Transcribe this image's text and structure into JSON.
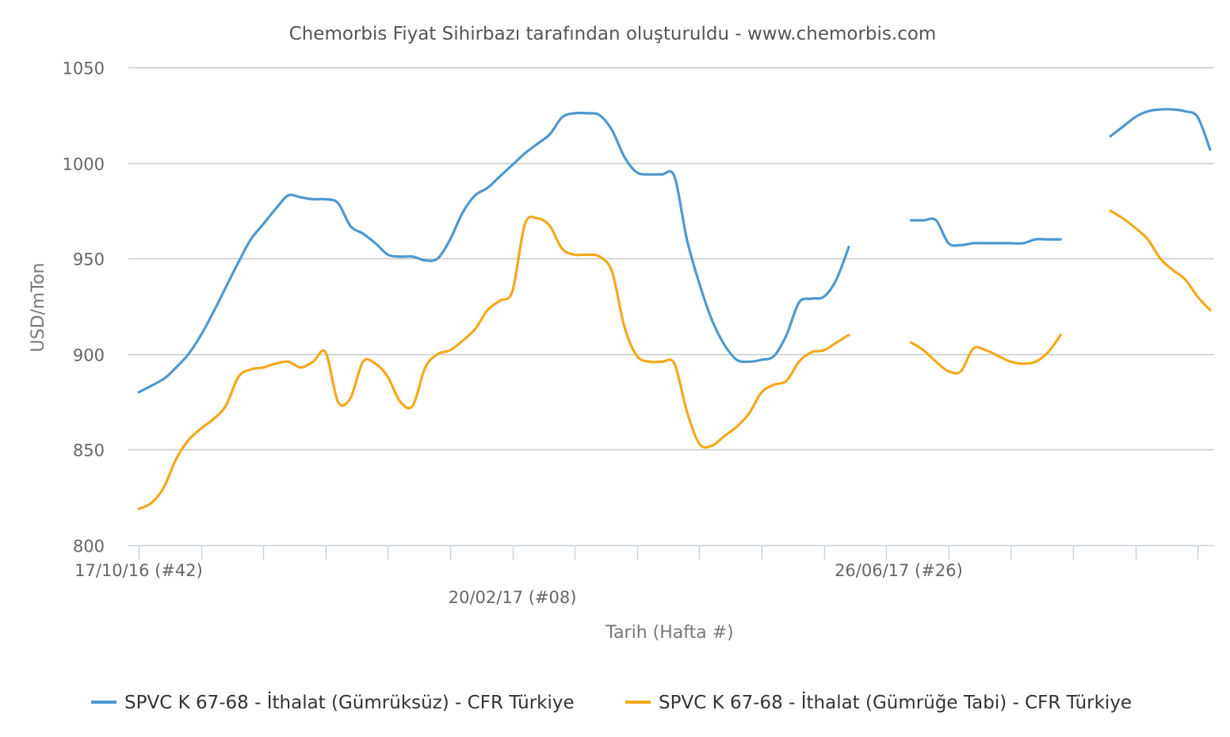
{
  "chart_data": {
    "type": "line",
    "title": "Chemorbis Fiyat Sihirbazı tarafından oluşturuldu - www.chemorbis.com",
    "xlabel": "Tarih (Hafta #)",
    "ylabel": "USD/mTon",
    "ylim": [
      800,
      1050
    ],
    "yticks": [
      800,
      850,
      900,
      950,
      1000,
      1050
    ],
    "x_start_week_index": 0,
    "x_end_week_index": 87,
    "x_labels": [
      {
        "label": "17/10/16 (#42)",
        "week_index": 0,
        "row": 1
      },
      {
        "label": "20/02/17 (#08)",
        "week_index": 30,
        "row": 2
      },
      {
        "label": "26/06/17 (#26)",
        "week_index": 61,
        "row": 1
      }
    ],
    "grid": true,
    "legend_position": "bottom",
    "series": [
      {
        "name": "SPVC K 67-68 - İthalat (Gümrüksüz) - CFR Türkiye",
        "color": "#4f98cf",
        "segments": [
          [
            [
              0,
              880
            ],
            [
              2,
              887
            ],
            [
              3,
              893
            ],
            [
              4,
              900
            ],
            [
              5,
              910
            ],
            [
              6,
              922
            ],
            [
              7,
              935
            ],
            [
              8,
              948
            ],
            [
              9,
              960
            ],
            [
              10,
              968
            ],
            [
              11,
              976
            ],
            [
              12,
              983
            ],
            [
              13,
              982
            ],
            [
              14,
              981
            ],
            [
              15,
              981
            ],
            [
              16,
              979
            ],
            [
              17,
              967
            ],
            [
              18,
              963
            ],
            [
              19,
              958
            ],
            [
              20,
              952
            ],
            [
              21,
              951
            ],
            [
              22,
              951
            ],
            [
              23,
              949
            ],
            [
              24,
              950
            ],
            [
              25,
              960
            ],
            [
              26,
              974
            ],
            [
              27,
              983
            ],
            [
              28,
              987
            ],
            [
              29,
              993
            ],
            [
              30,
              999
            ],
            [
              31,
              1005
            ],
            [
              32,
              1010
            ],
            [
              33,
              1015
            ],
            [
              34,
              1024
            ],
            [
              35,
              1026
            ],
            [
              36,
              1026
            ],
            [
              37,
              1025
            ],
            [
              38,
              1017
            ],
            [
              39,
              1003
            ],
            [
              40,
              995
            ],
            [
              41,
              994
            ],
            [
              42,
              994
            ],
            [
              43,
              993
            ],
            [
              44,
              960
            ],
            [
              45,
              937
            ],
            [
              46,
              918
            ],
            [
              47,
              905
            ],
            [
              48,
              897
            ],
            [
              49,
              896
            ],
            [
              50,
              897
            ],
            [
              51,
              899
            ],
            [
              52,
              910
            ],
            [
              53,
              927
            ],
            [
              54,
              929
            ],
            [
              55,
              930
            ],
            [
              56,
              939
            ],
            [
              57,
              956
            ]
          ],
          [
            [
              62,
              970
            ],
            [
              63,
              970
            ],
            [
              64,
              970
            ],
            [
              65,
              958
            ],
            [
              66,
              957
            ],
            [
              67,
              958
            ],
            [
              68,
              958
            ],
            [
              69,
              958
            ],
            [
              70,
              958
            ],
            [
              71,
              958
            ],
            [
              72,
              960
            ],
            [
              73,
              960
            ],
            [
              74,
              960
            ]
          ],
          [
            [
              78,
              1014
            ],
            [
              79,
              1019
            ],
            [
              80,
              1024
            ],
            [
              81,
              1027
            ],
            [
              82,
              1028
            ],
            [
              83,
              1028
            ],
            [
              84,
              1027
            ],
            [
              85,
              1024
            ],
            [
              86,
              1007
            ]
          ]
        ]
      },
      {
        "name": "SPVC K 67-68 - İthalat (Gümrüğe Tabi) - CFR Türkiye",
        "color": "#f5a81c",
        "segments": [
          [
            [
              0,
              819
            ],
            [
              1,
              822
            ],
            [
              2,
              830
            ],
            [
              3,
              845
            ],
            [
              4,
              855
            ],
            [
              5,
              861
            ],
            [
              6,
              866
            ],
            [
              7,
              873
            ],
            [
              8,
              888
            ],
            [
              9,
              892
            ],
            [
              10,
              893
            ],
            [
              11,
              895
            ],
            [
              12,
              896
            ],
            [
              13,
              893
            ],
            [
              14,
              896
            ],
            [
              15,
              901
            ],
            [
              16,
              875
            ],
            [
              17,
              877
            ],
            [
              18,
              896
            ],
            [
              19,
              895
            ],
            [
              20,
              888
            ],
            [
              21,
              875
            ],
            [
              22,
              873
            ],
            [
              23,
              893
            ],
            [
              24,
              900
            ],
            [
              25,
              902
            ],
            [
              26,
              907
            ],
            [
              27,
              913
            ],
            [
              28,
              923
            ],
            [
              29,
              928
            ],
            [
              30,
              933
            ],
            [
              31,
              968
            ],
            [
              32,
              971
            ],
            [
              33,
              967
            ],
            [
              34,
              955
            ],
            [
              35,
              952
            ],
            [
              36,
              952
            ],
            [
              37,
              951
            ],
            [
              38,
              943
            ],
            [
              39,
              914
            ],
            [
              40,
              899
            ],
            [
              41,
              896
            ],
            [
              42,
              896
            ],
            [
              43,
              895
            ],
            [
              44,
              870
            ],
            [
              45,
              853
            ],
            [
              46,
              852
            ],
            [
              47,
              857
            ],
            [
              48,
              862
            ],
            [
              49,
              869
            ],
            [
              50,
              880
            ],
            [
              51,
              884
            ],
            [
              52,
              886
            ],
            [
              53,
              896
            ],
            [
              54,
              901
            ],
            [
              55,
              902
            ],
            [
              56,
              906
            ],
            [
              57,
              910
            ]
          ],
          [
            [
              62,
              906
            ],
            [
              63,
              902
            ],
            [
              64,
              896
            ],
            [
              65,
              891
            ],
            [
              66,
              891
            ],
            [
              67,
              903
            ],
            [
              68,
              902
            ],
            [
              69,
              899
            ],
            [
              70,
              896
            ],
            [
              71,
              895
            ],
            [
              72,
              896
            ],
            [
              73,
              901
            ],
            [
              74,
              910
            ]
          ],
          [
            [
              78,
              975
            ],
            [
              79,
              971
            ],
            [
              80,
              966
            ],
            [
              81,
              960
            ],
            [
              82,
              950
            ],
            [
              83,
              944
            ],
            [
              84,
              939
            ],
            [
              85,
              930
            ],
            [
              86,
              923
            ]
          ]
        ]
      }
    ]
  }
}
